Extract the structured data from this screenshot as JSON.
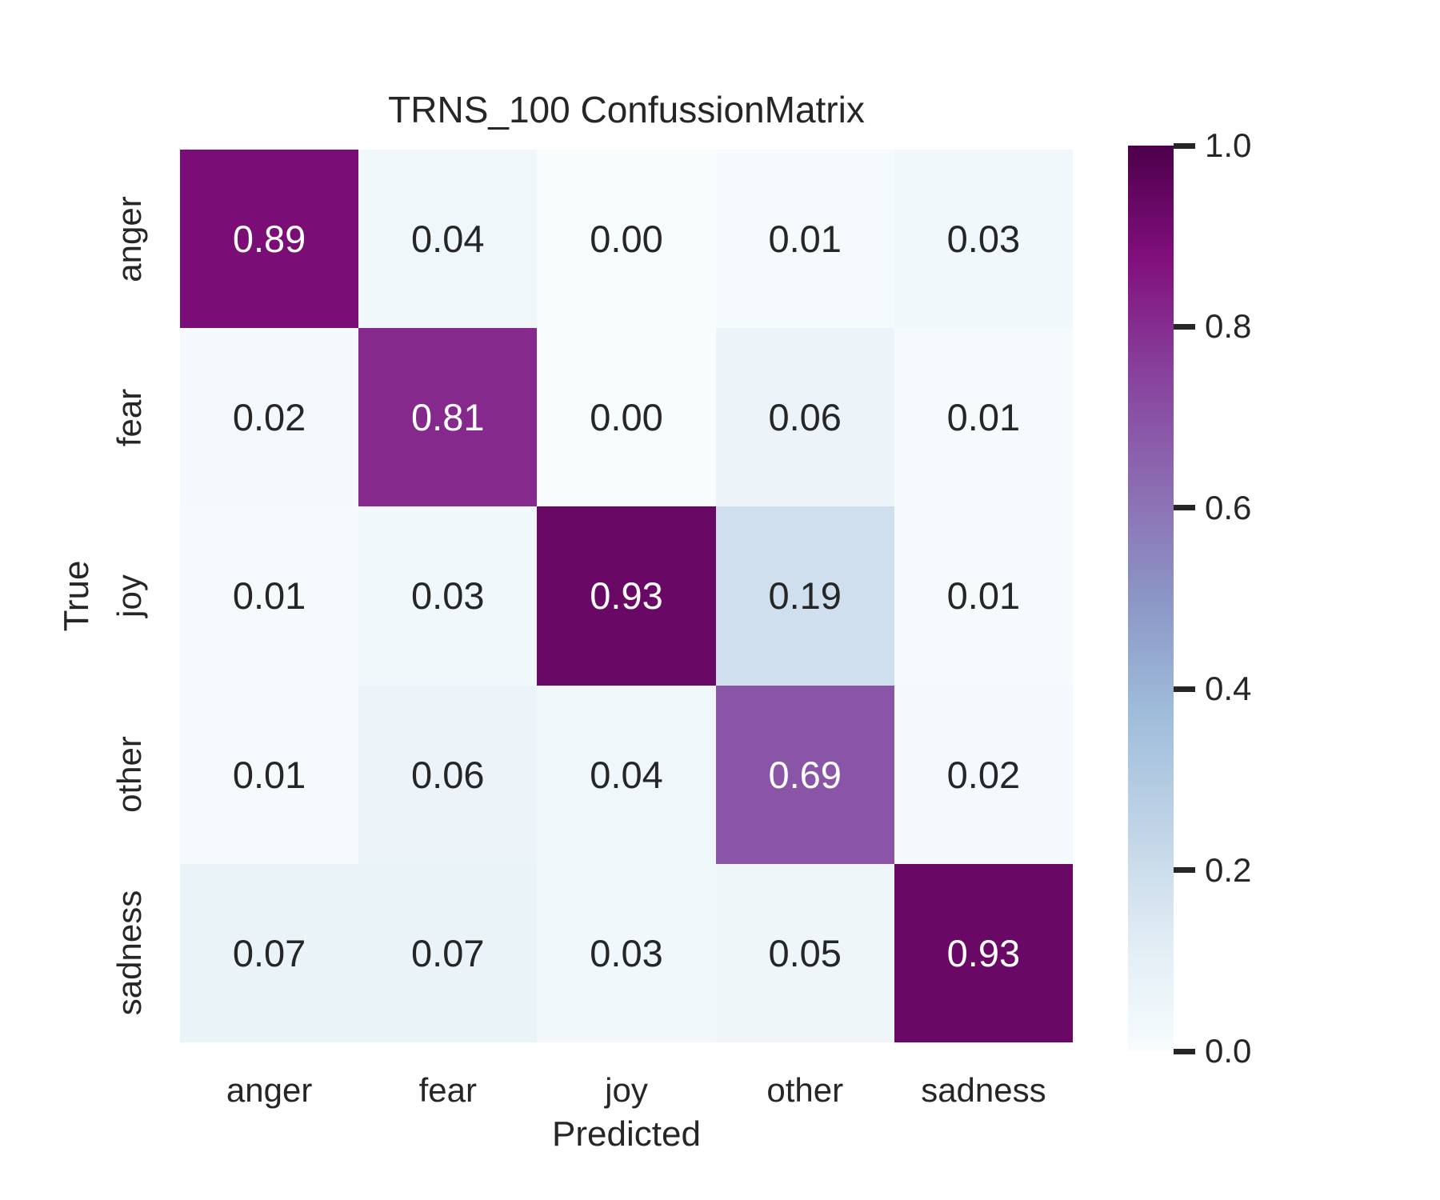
{
  "figure": {
    "background": "#ffffff",
    "text_color": "#262626",
    "tick_mark_color": "#262626"
  },
  "chart_data": {
    "type": "heatmap",
    "title": "TRNS_100 ConfussionMatrix",
    "xlabel": "Predicted",
    "ylabel": "True",
    "x_categories": [
      "anger",
      "fear",
      "joy",
      "other",
      "sadness"
    ],
    "y_categories": [
      "anger",
      "fear",
      "joy",
      "other",
      "sadness"
    ],
    "matrix": [
      [
        0.89,
        0.04,
        0.0,
        0.01,
        0.03
      ],
      [
        0.02,
        0.81,
        0.0,
        0.06,
        0.01
      ],
      [
        0.01,
        0.03,
        0.93,
        0.19,
        0.01
      ],
      [
        0.01,
        0.06,
        0.04,
        0.69,
        0.02
      ],
      [
        0.07,
        0.07,
        0.03,
        0.05,
        0.93
      ]
    ],
    "cell_label_decimals": 2,
    "annotation_text_light": "#ffffff",
    "annotation_text_dark": "#262626",
    "grid": false,
    "legend": false,
    "colormap": {
      "name": "BuPu",
      "stops": [
        [
          0.0,
          "#f7fcfd"
        ],
        [
          0.125,
          "#e0ecf4"
        ],
        [
          0.25,
          "#bfd3e6"
        ],
        [
          0.375,
          "#9ebcda"
        ],
        [
          0.5,
          "#8c96c6"
        ],
        [
          0.625,
          "#8c6bb1"
        ],
        [
          0.75,
          "#88419d"
        ],
        [
          0.875,
          "#810f7c"
        ],
        [
          1.0,
          "#4d004b"
        ]
      ]
    },
    "colorbar": {
      "min": 0.0,
      "max": 1.0,
      "position": "right",
      "tick_values": [
        1.0,
        0.8,
        0.6,
        0.4,
        0.2,
        0.0
      ],
      "tick_labels": [
        "1.0",
        "0.8",
        "0.6",
        "0.4",
        "0.2",
        "0.0"
      ]
    }
  }
}
